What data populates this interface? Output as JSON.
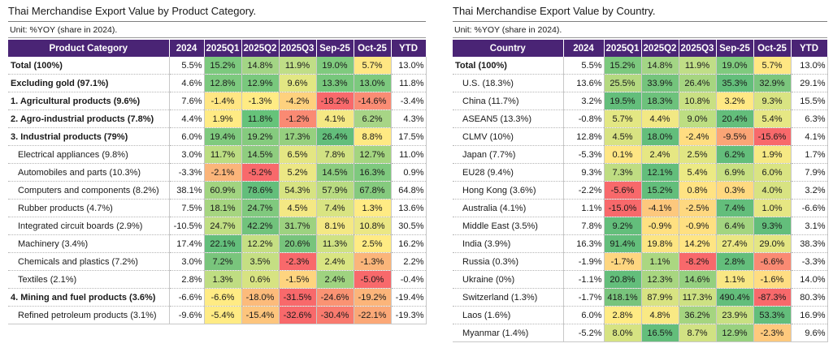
{
  "left_panel": {
    "title": "Thai Merchandise Export Value by Product Category.",
    "unit": "Unit: %YOY (share in 2024).",
    "headers": [
      "Product Category",
      "2024",
      "2025Q1",
      "2025Q2",
      "2025Q3",
      "Sep-25",
      "Oct-25",
      "YTD"
    ],
    "rows": [
      {
        "label": "Total (100%)",
        "bold": true,
        "indent": false,
        "c2024": "5.5%",
        "vals": [
          "15.2%",
          "14.8%",
          "11.9%",
          "19.0%",
          "5.7%"
        ],
        "colors": [
          "#7cc97e",
          "#a3d585",
          "#c0de87",
          "#7fca7e",
          "#ffe783"
        ],
        "ytd": "13.0%"
      },
      {
        "label": "Excluding gold (97.1%)",
        "bold": true,
        "indent": false,
        "c2024": "4.6%",
        "vals": [
          "12.8%",
          "12.9%",
          "9.6%",
          "13.3%",
          "13.0%"
        ],
        "colors": [
          "#7cc97e",
          "#79c87d",
          "#e2e783",
          "#77c77c",
          "#7cc97e"
        ],
        "ytd": "11.8%"
      },
      {
        "label": "1. Agricultural products (9.6%)",
        "bold": true,
        "indent": false,
        "c2024": "7.6%",
        "vals": [
          "-1.4%",
          "-1.3%",
          "-4.2%",
          "-18.2%",
          "-14.6%"
        ],
        "colors": [
          "#ffe683",
          "#ffeb84",
          "#fed17e",
          "#f8696b",
          "#fa8c74"
        ],
        "ytd": "-3.4%"
      },
      {
        "label": "2. Agro-industrial products (7.8%)",
        "bold": true,
        "indent": false,
        "c2024": "4.4%",
        "vals": [
          "1.9%",
          "11.8%",
          "-1.2%",
          "4.1%",
          "6.2%"
        ],
        "colors": [
          "#ffeb84",
          "#66c37a",
          "#fa8a73",
          "#f5e884",
          "#a7d586"
        ],
        "ytd": "4.3%"
      },
      {
        "label": "3. Industrial products (79%)",
        "bold": true,
        "indent": false,
        "c2024": "6.0%",
        "vals": [
          "19.4%",
          "19.2%",
          "17.3%",
          "26.4%",
          "8.8%"
        ],
        "colors": [
          "#7fca7e",
          "#85cb7e",
          "#96d07f",
          "#63be7b",
          "#ffe983"
        ],
        "ytd": "17.5%"
      },
      {
        "label": "Electrical appliances (9.8%)",
        "bold": false,
        "indent": true,
        "c2024": "3.0%",
        "vals": [
          "11.7%",
          "14.5%",
          "6.5%",
          "7.8%",
          "12.7%"
        ],
        "colors": [
          "#bcdd82",
          "#8fcd7f",
          "#e4e683",
          "#d2e283",
          "#a4d580"
        ],
        "ytd": "11.0%"
      },
      {
        "label": "Automobiles and parts (10.3%)",
        "bold": false,
        "indent": true,
        "c2024": "-3.3%",
        "vals": [
          "-2.1%",
          "-5.2%",
          "5.2%",
          "14.5%",
          "16.3%"
        ],
        "colors": [
          "#fbb57a",
          "#f8696b",
          "#ece784",
          "#8ccd7f",
          "#7ec97e"
        ],
        "ytd": "0.9%"
      },
      {
        "label": "Computers and components (8.2%)",
        "bold": false,
        "indent": true,
        "c2024": "38.1%",
        "vals": [
          "60.9%",
          "78.6%",
          "54.3%",
          "57.9%",
          "67.8%"
        ],
        "colors": [
          "#a1d480",
          "#63be7b",
          "#d7e382",
          "#b8db81",
          "#85ca7e"
        ],
        "ytd": "64.8%"
      },
      {
        "label": "Rubber products (4.7%)",
        "bold": false,
        "indent": true,
        "c2024": "7.5%",
        "vals": [
          "18.1%",
          "24.7%",
          "4.5%",
          "7.4%",
          "1.3%"
        ],
        "colors": [
          "#a6d580",
          "#80c97e",
          "#f4e884",
          "#d9e482",
          "#ffeb84"
        ],
        "ytd": "13.6%"
      },
      {
        "label": "Integrated circuit boards (2.9%)",
        "bold": false,
        "indent": true,
        "c2024": "-10.5%",
        "vals": [
          "24.7%",
          "42.2%",
          "31.7%",
          "8.1%",
          "10.8%"
        ],
        "colors": [
          "#c0de83",
          "#71c37c",
          "#9dd280",
          "#f4e884",
          "#ebe784"
        ],
        "ytd": "30.5%"
      },
      {
        "label": "Machinery (3.4%)",
        "bold": false,
        "indent": true,
        "c2024": "17.4%",
        "vals": [
          "22.1%",
          "12.2%",
          "20.6%",
          "11.3%",
          "2.5%"
        ],
        "colors": [
          "#63be7b",
          "#c5df83",
          "#77c47c",
          "#cfe283",
          "#ffeb84"
        ],
        "ytd": "16.2%"
      },
      {
        "label": "Chemicals and plastics (7.2%)",
        "bold": false,
        "indent": true,
        "c2024": "3.0%",
        "vals": [
          "7.2%",
          "3.5%",
          "-2.3%",
          "2.4%",
          "-1.3%"
        ],
        "colors": [
          "#79c57c",
          "#c5df83",
          "#f8696b",
          "#d9e582",
          "#fbb57a"
        ],
        "ytd": "2.2%"
      },
      {
        "label": "Textiles (2.1%)",
        "bold": false,
        "indent": true,
        "c2024": "2.8%",
        "vals": [
          "1.3%",
          "0.6%",
          "-1.5%",
          "2.4%",
          "-5.0%"
        ],
        "colors": [
          "#bfdd82",
          "#d7e382",
          "#fed47f",
          "#9fd380",
          "#f8696b"
        ],
        "ytd": "-0.4%"
      },
      {
        "label": "4. Mining and fuel products (3.6%)",
        "bold": true,
        "indent": false,
        "c2024": "-6.6%",
        "vals": [
          "-6.6%",
          "-18.0%",
          "-31.5%",
          "-24.6%",
          "-19.2%"
        ],
        "colors": [
          "#ffeb84",
          "#fcbb7b",
          "#f8696b",
          "#fa9373",
          "#fcb57a"
        ],
        "ytd": "-19.4%"
      },
      {
        "label": "Refined petroleum products (3.1%)",
        "bold": false,
        "indent": true,
        "c2024": "-9.6%",
        "vals": [
          "-5.4%",
          "-15.4%",
          "-32.6%",
          "-30.4%",
          "-22.1%"
        ],
        "colors": [
          "#ffeb84",
          "#fdc57d",
          "#f8696b",
          "#f97a6e",
          "#fba877"
        ],
        "ytd": "-19.3%"
      }
    ]
  },
  "right_panel": {
    "title": "Thai Merchandise Export Value by Country.",
    "unit": "Unit: %YOY (share in 2024).",
    "headers": [
      "Country",
      "2024",
      "2025Q1",
      "2025Q2",
      "2025Q3",
      "Sep-25",
      "Oct-25",
      "YTD"
    ],
    "rows": [
      {
        "label": "Total (100%)",
        "bold": true,
        "indent": false,
        "c2024": "5.5%",
        "vals": [
          "15.2%",
          "14.8%",
          "11.9%",
          "19.0%",
          "5.7%"
        ],
        "colors": [
          "#7cc97e",
          "#a3d585",
          "#c0de87",
          "#7fca7e",
          "#ffe783"
        ],
        "ytd": "13.0%"
      },
      {
        "label": "U.S. (18.3%)",
        "bold": false,
        "indent": true,
        "c2024": "13.6%",
        "vals": [
          "25.5%",
          "33.9%",
          "26.4%",
          "35.3%",
          "32.9%"
        ],
        "colors": [
          "#b4d980",
          "#74c47c",
          "#a6d580",
          "#63be7b",
          "#7bc67d"
        ],
        "ytd": "29.1%"
      },
      {
        "label": "China (11.7%)",
        "bold": false,
        "indent": true,
        "c2024": "3.2%",
        "vals": [
          "19.5%",
          "18.3%",
          "10.8%",
          "3.2%",
          "9.3%"
        ],
        "colors": [
          "#63be7b",
          "#6dc27c",
          "#c9e083",
          "#ffe884",
          "#d9e482"
        ],
        "ytd": "15.5%"
      },
      {
        "label": "ASEAN5 (13.3%)",
        "bold": false,
        "indent": true,
        "c2024": "-0.8%",
        "vals": [
          "5.7%",
          "4.4%",
          "9.0%",
          "20.4%",
          "5.4%"
        ],
        "colors": [
          "#e3e783",
          "#f2e884",
          "#bdde82",
          "#63be7b",
          "#e6e784"
        ],
        "ytd": "6.3%"
      },
      {
        "label": "CLMV (10%)",
        "bold": false,
        "indent": true,
        "c2024": "12.8%",
        "vals": [
          "4.5%",
          "18.0%",
          "-2.4%",
          "-9.5%",
          "-15.6%"
        ],
        "colors": [
          "#d8e382",
          "#63be7b",
          "#ffdd81",
          "#fba576",
          "#f8696b"
        ],
        "ytd": "4.1%"
      },
      {
        "label": "Japan (7.7%)",
        "bold": false,
        "indent": true,
        "c2024": "-5.3%",
        "vals": [
          "0.1%",
          "2.4%",
          "2.5%",
          "6.2%",
          "1.9%"
        ],
        "colors": [
          "#ffe684",
          "#e6e783",
          "#e1e683",
          "#63be7b",
          "#f6e984"
        ],
        "ytd": "1.7%"
      },
      {
        "label": "EU28 (9.4%)",
        "bold": false,
        "indent": true,
        "c2024": "9.3%",
        "vals": [
          "7.3%",
          "12.1%",
          "5.4%",
          "6.9%",
          "6.0%"
        ],
        "colors": [
          "#bfdd82",
          "#63be7b",
          "#ecea84",
          "#c7e082",
          "#dae482"
        ],
        "ytd": "7.9%"
      },
      {
        "label": "Hong Kong (3.6%)",
        "bold": false,
        "indent": true,
        "c2024": "-2.2%",
        "vals": [
          "-5.6%",
          "15.2%",
          "0.8%",
          "0.3%",
          "4.0%"
        ],
        "colors": [
          "#f8696b",
          "#63be7b",
          "#ffe383",
          "#ffd980",
          "#d8e382"
        ],
        "ytd": "3.2%"
      },
      {
        "label": "Australia (4.1%)",
        "bold": false,
        "indent": true,
        "c2024": "1.1%",
        "vals": [
          "-15.0%",
          "-4.1%",
          "-2.5%",
          "7.4%",
          "1.0%"
        ],
        "colors": [
          "#f8696b",
          "#fdc87d",
          "#fed880",
          "#63be7b",
          "#e6e683"
        ],
        "ytd": "-6.6%"
      },
      {
        "label": "Middle East (3.5%)",
        "bold": false,
        "indent": true,
        "c2024": "7.8%",
        "vals": [
          "9.2%",
          "-0.9%",
          "-0.9%",
          "6.4%",
          "9.3%"
        ],
        "colors": [
          "#63be7b",
          "#ffe081",
          "#ffe081",
          "#a3d580",
          "#63be7b"
        ],
        "ytd": "3.1%"
      },
      {
        "label": "India (3.9%)",
        "bold": false,
        "indent": true,
        "c2024": "16.3%",
        "vals": [
          "91.4%",
          "19.8%",
          "14.2%",
          "27.4%",
          "29.0%"
        ],
        "colors": [
          "#63be7b",
          "#fce582",
          "#ffe583",
          "#eae783",
          "#e4e683"
        ],
        "ytd": "38.3%"
      },
      {
        "label": "Russia (0.3%)",
        "bold": false,
        "indent": true,
        "c2024": "-1.9%",
        "vals": [
          "-1.7%",
          "1.1%",
          "-8.2%",
          "2.8%",
          "-6.6%"
        ],
        "colors": [
          "#fed680",
          "#abd781",
          "#f8696b",
          "#63be7b",
          "#fa8a73"
        ],
        "ytd": "-3.3%"
      },
      {
        "label": "Ukraine (0%)",
        "bold": false,
        "indent": true,
        "c2024": "-1.1%",
        "vals": [
          "20.8%",
          "12.3%",
          "14.6%",
          "1.1%",
          "-1.6%"
        ],
        "colors": [
          "#63be7b",
          "#a8d680",
          "#94d07f",
          "#f9e784",
          "#ffdd82"
        ],
        "ytd": "14.0%"
      },
      {
        "label": "Switzerland (1.3%)",
        "bold": false,
        "indent": true,
        "c2024": "-1.7%",
        "vals": [
          "418.1%",
          "87.9%",
          "117.3%",
          "490.4%",
          "-87.3%"
        ],
        "colors": [
          "#78c47c",
          "#d8e382",
          "#cde183",
          "#63be7b",
          "#f8696b"
        ],
        "ytd": "80.3%"
      },
      {
        "label": "Laos (1.6%)",
        "bold": false,
        "indent": true,
        "c2024": "6.0%",
        "vals": [
          "2.8%",
          "4.8%",
          "36.2%",
          "23.9%",
          "53.3%"
        ],
        "colors": [
          "#ffeb84",
          "#f9e984",
          "#a5d580",
          "#c8e082",
          "#63be7b"
        ],
        "ytd": "16.9%"
      },
      {
        "label": "Myanmar (1.4%)",
        "bold": false,
        "indent": true,
        "c2024": "-5.2%",
        "vals": [
          "8.0%",
          "16.5%",
          "8.7%",
          "12.9%",
          "-2.3%"
        ],
        "colors": [
          "#d6e382",
          "#63be7b",
          "#d1e283",
          "#98d17f",
          "#fec97d"
        ],
        "ytd": "9.6%"
      }
    ]
  }
}
